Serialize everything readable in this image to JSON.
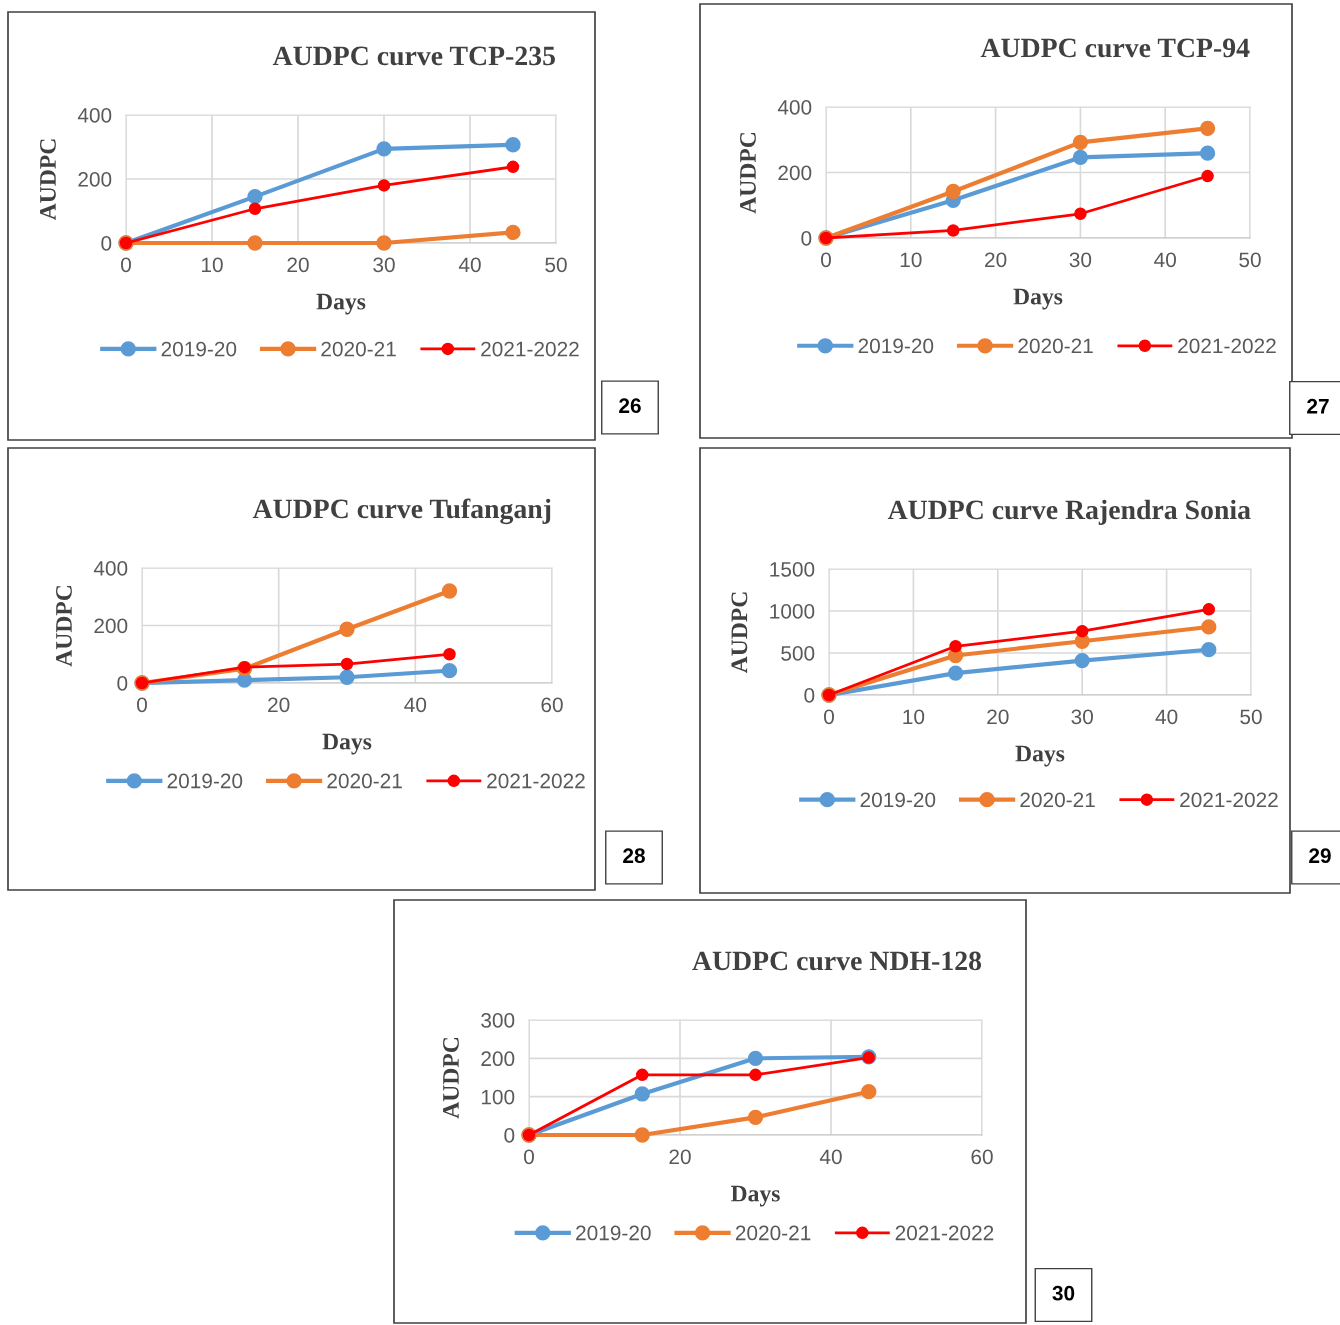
{
  "chart_data": [
    {
      "type": "line",
      "title": "AUDPC curve TCP-235",
      "xlabel": "Days",
      "ylabel": "AUDPC",
      "xlim": [
        0,
        50
      ],
      "xticks": [
        0,
        10,
        20,
        30,
        40,
        50
      ],
      "ylim": [
        0,
        400
      ],
      "yticks": [
        0,
        200,
        400
      ],
      "grid": true,
      "legend": "bottom",
      "marker": "circle",
      "line_style": "solid",
      "annotations": [
        "26"
      ],
      "x": [
        0,
        15,
        30,
        45
      ],
      "series": [
        {
          "name": "2019-20",
          "color": "#5b9bd5",
          "values": [
            0,
            145,
            294,
            307
          ]
        },
        {
          "name": "2020-21",
          "color": "#ed7d31",
          "values": [
            0,
            0,
            0,
            33
          ]
        },
        {
          "name": "2021-2022",
          "color": "#ff0000",
          "values": [
            0,
            107,
            180,
            238
          ]
        }
      ]
    },
    {
      "type": "line",
      "title": "AUDPC curve TCP-94",
      "xlabel": "Days",
      "ylabel": "AUDPC",
      "xlim": [
        0,
        50
      ],
      "xticks": [
        0,
        10,
        20,
        30,
        40,
        50
      ],
      "ylim": [
        0,
        400
      ],
      "yticks": [
        0,
        200,
        400
      ],
      "grid": true,
      "legend": "bottom",
      "marker": "circle",
      "line_style": "solid",
      "annotations": [
        "27"
      ],
      "x": [
        0,
        15,
        30,
        45
      ],
      "series": [
        {
          "name": "2019-20",
          "color": "#5b9bd5",
          "values": [
            0,
            115,
            246,
            259
          ]
        },
        {
          "name": "2020-21",
          "color": "#ed7d31",
          "values": [
            0,
            142,
            292,
            335
          ]
        },
        {
          "name": "2021-2022",
          "color": "#ff0000",
          "values": [
            0,
            23,
            74,
            189
          ]
        }
      ]
    },
    {
      "type": "line",
      "title": "AUDPC curve Tufanganj",
      "xlabel": "Days",
      "ylabel": "AUDPC",
      "xlim": [
        0,
        60
      ],
      "xticks": [
        0,
        20,
        40,
        60
      ],
      "ylim": [
        0,
        400
      ],
      "yticks": [
        0,
        200,
        400
      ],
      "grid": true,
      "legend": "bottom",
      "marker": "circle",
      "line_style": "solid",
      "annotations": [
        "28"
      ],
      "x": [
        0,
        15,
        30,
        45
      ],
      "series": [
        {
          "name": "2019-20",
          "color": "#5b9bd5",
          "values": [
            0,
            10,
            20,
            43
          ]
        },
        {
          "name": "2020-21",
          "color": "#ed7d31",
          "values": [
            0,
            50,
            187,
            320
          ]
        },
        {
          "name": "2021-2022",
          "color": "#ff0000",
          "values": [
            0,
            55,
            66,
            100
          ]
        }
      ]
    },
    {
      "type": "line",
      "title": "AUDPC curve Rajendra Sonia",
      "xlabel": "Days",
      "ylabel": "AUDPC",
      "xlim": [
        0,
        50
      ],
      "xticks": [
        0,
        10,
        20,
        30,
        40,
        50
      ],
      "ylim": [
        0,
        1500
      ],
      "yticks": [
        0,
        500,
        1000,
        1500
      ],
      "grid": true,
      "legend": "bottom",
      "marker": "circle",
      "line_style": "solid",
      "annotations": [
        "29"
      ],
      "x": [
        0,
        15,
        30,
        45
      ],
      "series": [
        {
          "name": "2019-20",
          "color": "#5b9bd5",
          "values": [
            0,
            260,
            410,
            540
          ]
        },
        {
          "name": "2020-21",
          "color": "#ed7d31",
          "values": [
            0,
            470,
            640,
            810
          ]
        },
        {
          "name": "2021-2022",
          "color": "#ff0000",
          "values": [
            0,
            580,
            760,
            1020
          ]
        }
      ]
    },
    {
      "type": "line",
      "title": "AUDPC curve NDH-128",
      "xlabel": "Days",
      "ylabel": "AUDPC",
      "xlim": [
        0,
        60
      ],
      "xticks": [
        0,
        20,
        40,
        60
      ],
      "ylim": [
        0,
        300
      ],
      "yticks": [
        0,
        100,
        200,
        300
      ],
      "grid": true,
      "legend": "bottom",
      "marker": "circle",
      "line_style": "solid",
      "annotations": [
        "30"
      ],
      "x": [
        0,
        15,
        30,
        45
      ],
      "series": [
        {
          "name": "2019-20",
          "color": "#5b9bd5",
          "values": [
            0,
            107,
            200,
            204
          ]
        },
        {
          "name": "2020-21",
          "color": "#ed7d31",
          "values": [
            0,
            0,
            46,
            113
          ]
        },
        {
          "name": "2021-2022",
          "color": "#ff0000",
          "values": [
            0,
            157,
            157,
            202
          ]
        }
      ]
    }
  ]
}
